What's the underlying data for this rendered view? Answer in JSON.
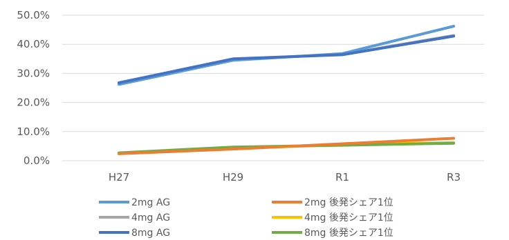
{
  "chart_data": {
    "type": "line",
    "categories": [
      "H27",
      "H29",
      "R1",
      "R3"
    ],
    "ylim": [
      0,
      0.5
    ],
    "yticks": [
      0,
      0.1,
      0.2,
      0.3,
      0.4,
      0.5
    ],
    "ytick_labels": [
      "0.0%",
      "10.0%",
      "20.0%",
      "30.0%",
      "40.0%",
      "50.0%"
    ],
    "grid": true,
    "legend_position": "bottom",
    "series": [
      {
        "name": "2mg AG",
        "color": "#5B9BD5",
        "values": [
          0.262,
          0.345,
          0.368,
          0.462
        ]
      },
      {
        "name": "2mg 後発シェア1位",
        "color": "#ED7D31",
        "values": [
          0.024,
          0.04,
          0.058,
          0.077
        ]
      },
      {
        "name": "4mg AG",
        "color": "#A5A5A5",
        "values": [
          0.267,
          0.349,
          0.365,
          0.43
        ]
      },
      {
        "name": "4mg 後発シェア1位",
        "color": "#FFC000",
        "values": [
          0.026,
          0.042,
          0.055,
          0.062
        ]
      },
      {
        "name": "8mg AG",
        "color": "#4472C4",
        "values": [
          0.268,
          0.35,
          0.364,
          0.428
        ]
      },
      {
        "name": "8mg 後発シェア1位",
        "color": "#70AD47",
        "values": [
          0.027,
          0.047,
          0.053,
          0.06
        ]
      }
    ]
  }
}
